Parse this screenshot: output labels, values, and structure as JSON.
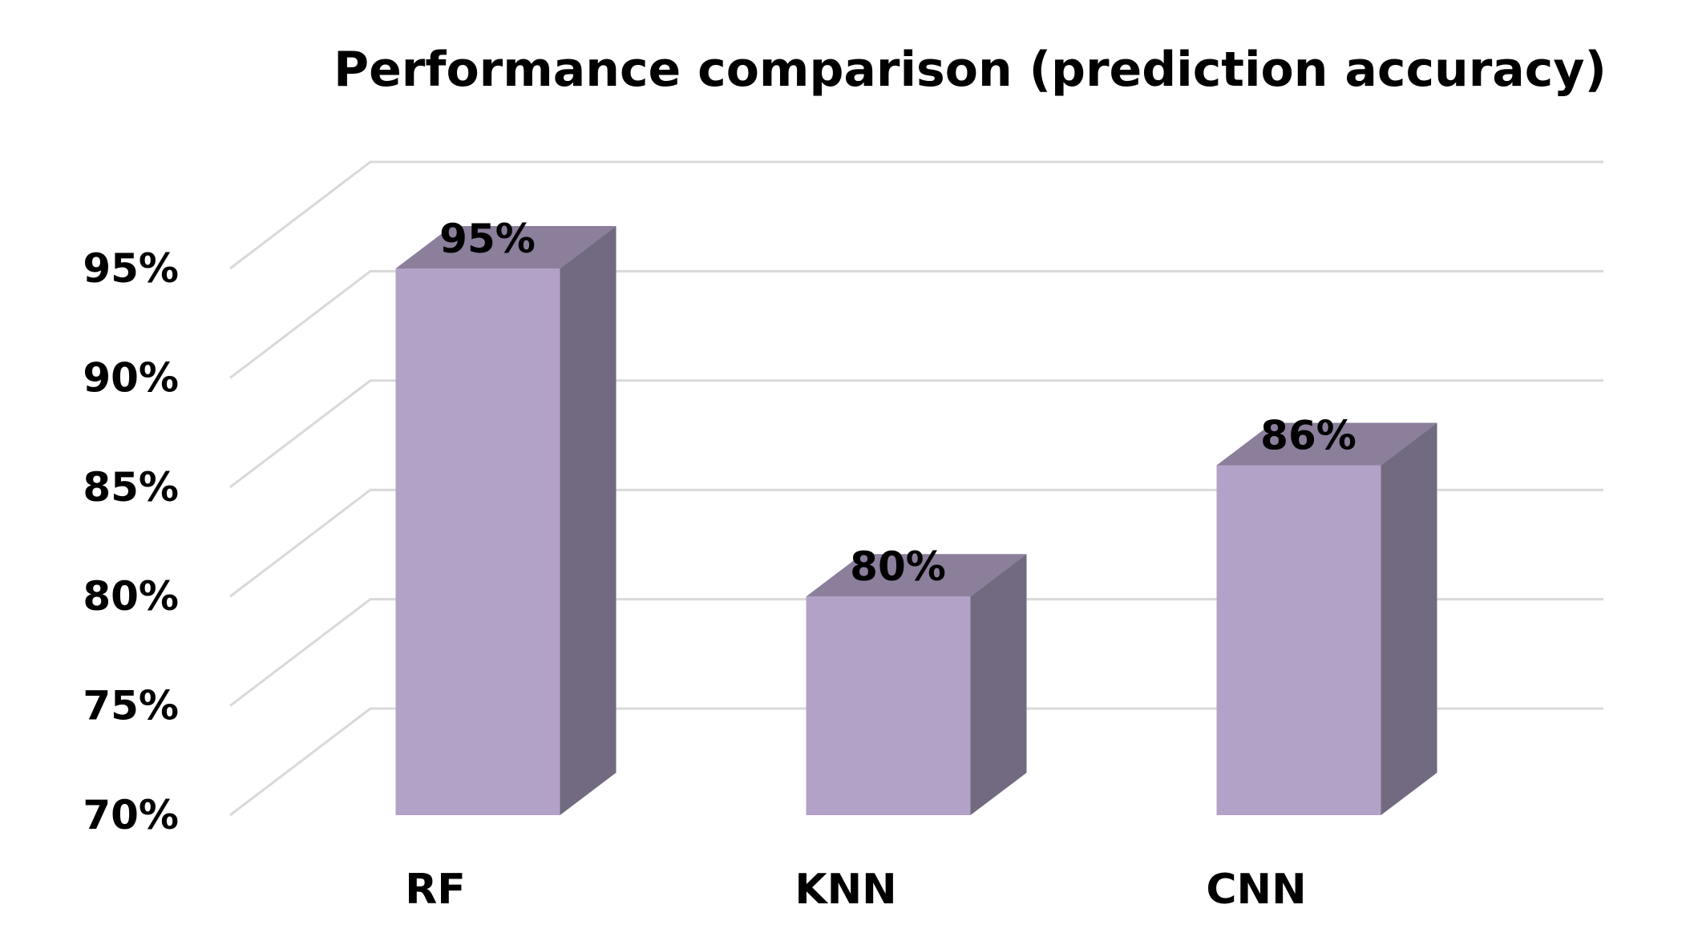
{
  "chart_data": {
    "type": "bar",
    "title": "Performance comparison (prediction accuracy)",
    "categories": [
      "RF",
      "KNN",
      "CNN"
    ],
    "values": [
      95,
      80,
      86
    ],
    "data_labels": [
      "95%",
      "80%",
      "86%"
    ],
    "ylim": [
      70,
      95
    ],
    "y_ticks": [
      70,
      75,
      80,
      85,
      90,
      95
    ],
    "y_tick_labels": [
      "70%",
      "75%",
      "80%",
      "85%",
      "90%",
      "95%"
    ],
    "grid": true,
    "legend": "none",
    "three_d": true,
    "colors": {
      "bar_front": "#b3a2c7",
      "bar_top": "#8b7f9c",
      "bar_side": "#716a80",
      "grid": "#d9d9d9"
    }
  }
}
